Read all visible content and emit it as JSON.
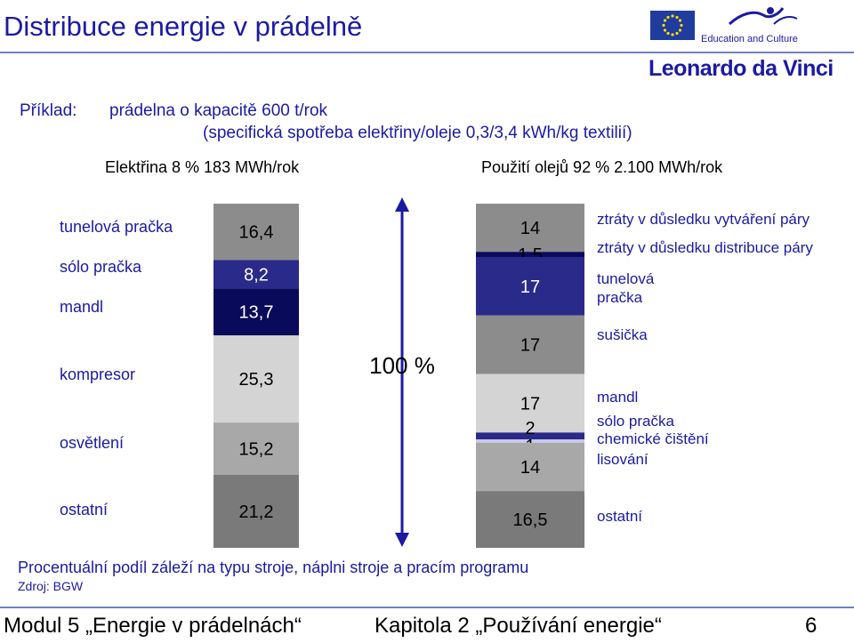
{
  "title": "Distribuce energie v prádelně",
  "example": {
    "label": "Příklad:",
    "line1": "prádelna o kapacitě 600 t/rok",
    "line2": "(specifická spotřeba elektřiny/oleje 0,3/3,4 kWh/kg textilií)"
  },
  "headers": {
    "left": "Elektřina 8 % 183 MWh/rok",
    "right": "Použití olejů 92 % 2.100 MWh/rok"
  },
  "logo": {
    "education": "Education and Culture",
    "program": "Leonardo da Vinci"
  },
  "colors": {
    "dark_blue": "#0a0a5a",
    "navy": "#2a2a8a",
    "mid_gray": "#8c8c8c",
    "light_gray": "#d4d4d4",
    "gray": "#a8a8a8",
    "dark_gray": "#7a7a7a",
    "text_blue": "#1a1aa6"
  },
  "chart_data": {
    "type": "bar",
    "stacked": true,
    "total_label": "100 %",
    "bars": [
      {
        "name": "Elektřina",
        "segments": [
          {
            "category": "tunelová pračka",
            "value": 16.4,
            "label": "16,4",
            "color": "#8c8c8c"
          },
          {
            "category": "sólo pračka",
            "value": 8.2,
            "label": "8,2",
            "color": "#2a2a8a"
          },
          {
            "category": "mandl",
            "value": 13.7,
            "label": "13,7",
            "color": "#0a0a5a"
          },
          {
            "category": "kompresor",
            "value": 25.3,
            "label": "25,3",
            "color": "#d4d4d4"
          },
          {
            "category": "osvětlení",
            "value": 15.2,
            "label": "15,2",
            "color": "#a8a8a8"
          },
          {
            "category": "ostatní",
            "value": 21.2,
            "label": "21,2",
            "color": "#7a7a7a"
          }
        ]
      },
      {
        "name": "Použití olejů",
        "segments": [
          {
            "category": "ztráty v důsledku vytváření páry",
            "value": 14,
            "label": "14",
            "color": "#8c8c8c"
          },
          {
            "category": "ztráty v důsledku distribuce páry",
            "value": 1.5,
            "label": "1,5",
            "color": "#0a0a5a"
          },
          {
            "category": "tunelová pračka",
            "value": 17,
            "label": "17",
            "color": "#2a2a8a"
          },
          {
            "category": "sušička",
            "value": 17,
            "label": "17",
            "color": "#8c8c8c"
          },
          {
            "category": "mandl",
            "value": 17,
            "label": "17",
            "color": "#d4d4d4"
          },
          {
            "category": "sólo pračka",
            "value": 2,
            "label": "2",
            "color": "#2a2a8a"
          },
          {
            "category": "chemické čištění",
            "value": 1,
            "label": "1",
            "color": "#c8c8e8"
          },
          {
            "category": "lisování",
            "value": 14,
            "label": "14",
            "color": "#a8a8a8"
          },
          {
            "category": "ostatní",
            "value": 16.5,
            "label": "16,5",
            "color": "#7a7a7a"
          }
        ]
      }
    ]
  },
  "footnote": "Procentuální podíl záleží na typu stroje, náplni stroje a pracím programu",
  "source": "Zdroj: BGW",
  "footer": {
    "module": "Modul 5 „Energie v prádelnách“",
    "chapter": "Kapitola 2 „Používání energie“",
    "page": "6"
  }
}
